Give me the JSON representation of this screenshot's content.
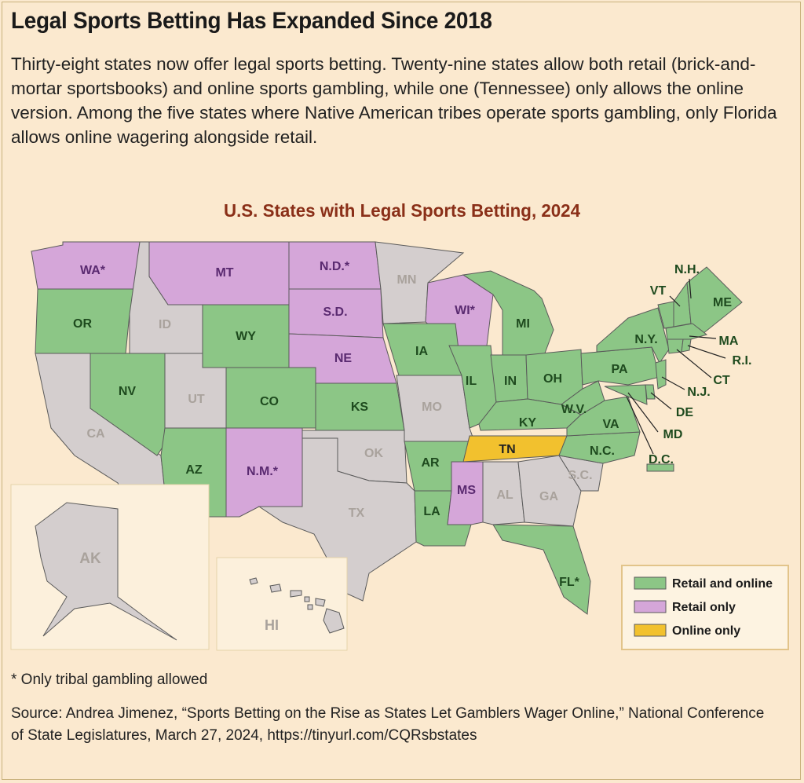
{
  "title": "Legal Sports Betting Has Expanded Since 2018",
  "intro": "Thirty-eight states now offer legal sports betting. Twenty-nine states allow both retail (brick-and-mortar sportsbooks) and online sports gambling, while one (Tennessee) only allows the online version. Among the five states where Native American tribes operate sports gambling, only Florida allows online wagering alongside retail.",
  "map_title": "U.S. States with Legal Sports Betting, 2024",
  "colors": {
    "retail_and_online": "#8cc686",
    "retail_only": "#d5a6d9",
    "online_only": "#f2c12e",
    "none": "#d4cece",
    "background": "#fbe9cf"
  },
  "states": {
    "WA": "WA*",
    "OR": "OR",
    "CA": "CA",
    "ID": "ID",
    "NV": "NV",
    "UT": "UT",
    "AZ": "AZ",
    "MT": "MT",
    "WY": "WY",
    "CO": "CO",
    "NM": "N.M.*",
    "ND": "N.D.*",
    "SD": "S.D.",
    "NE": "NE",
    "KS": "KS",
    "OK": "OK",
    "TX": "TX",
    "MN": "MN",
    "IA": "IA",
    "MO": "MO",
    "AR": "AR",
    "LA": "LA",
    "WI": "WI*",
    "IL": "IL",
    "MI": "MI",
    "IN": "IN",
    "OH": "OH",
    "KY": "KY",
    "TN": "TN",
    "MS": "MS",
    "AL": "AL",
    "GA": "GA",
    "FL": "FL*",
    "SC": "S.C.",
    "NC": "N.C.",
    "VA": "VA",
    "WV": "W.V.",
    "PA": "PA",
    "NY": "N.Y.",
    "VT": "VT",
    "NH": "N.H.",
    "ME": "ME",
    "MA": "MA",
    "RI": "R.I.",
    "CT": "CT",
    "NJ": "N.J.",
    "DE": "DE",
    "MD": "MD",
    "DC": "D.C.",
    "AK": "AK",
    "HI": "HI"
  },
  "legend": {
    "retail_and_online": "Retail and online",
    "retail_only": "Retail only",
    "online_only": "Online only"
  },
  "footnote": "* Only tribal gambling allowed",
  "source": "Source: Andrea Jimenez, “Sports Betting on the Rise as States Let Gamblers Wager Online,” National Conference of State Legislatures, March 27, 2024, https://tinyurl.com/CQRsbstates"
}
